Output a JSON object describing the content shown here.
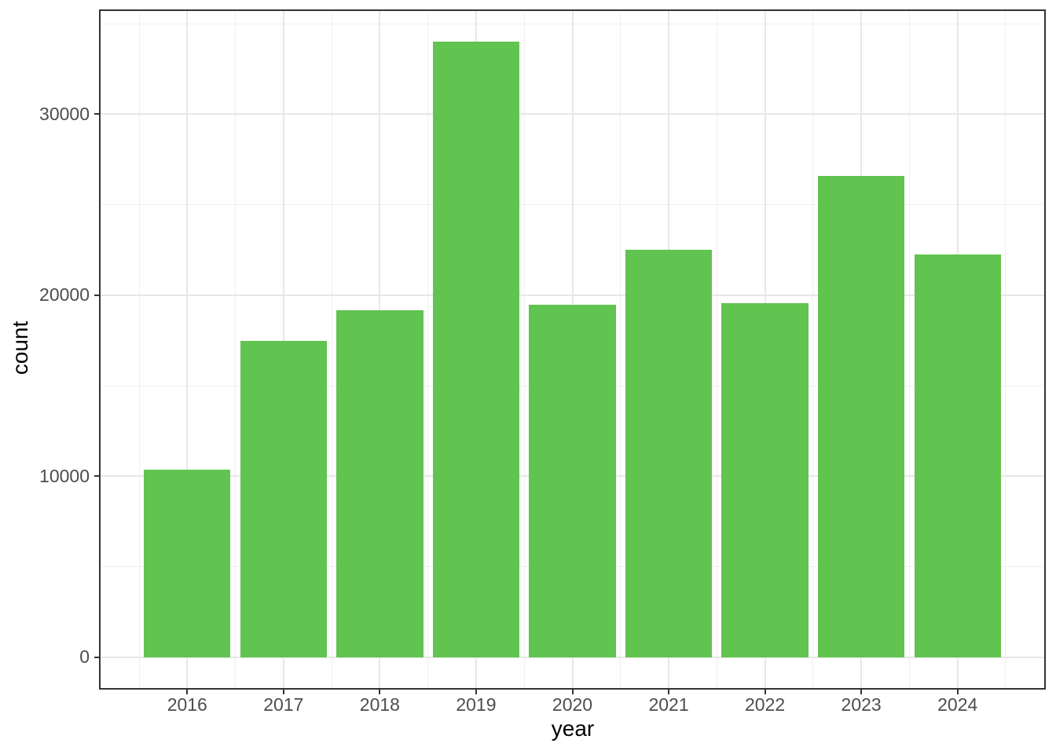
{
  "chart_data": {
    "type": "bar",
    "title": "",
    "xlabel": "year",
    "ylabel": "count",
    "categories": [
      2016,
      2017,
      2018,
      2019,
      2020,
      2021,
      2022,
      2023,
      2024
    ],
    "values": [
      10380,
      17490,
      19150,
      34000,
      19490,
      22530,
      19580,
      26600,
      22270
    ],
    "ylim": [
      0,
      34000
    ],
    "y_major_ticks": [
      0,
      10000,
      20000,
      30000
    ],
    "y_minor_ticks": [
      5000,
      15000,
      25000,
      35000
    ],
    "grid": "on",
    "legend": "none",
    "bar_width_fraction": 0.9,
    "colors": {
      "bar_fill": "#61c350",
      "grid_major": "#e7e7e7",
      "grid_minor": "#f0f0f0",
      "panel_border": "#333333",
      "tick_label": "#4d4d4d",
      "axis_title": "#000000",
      "background": "#ffffff"
    }
  }
}
